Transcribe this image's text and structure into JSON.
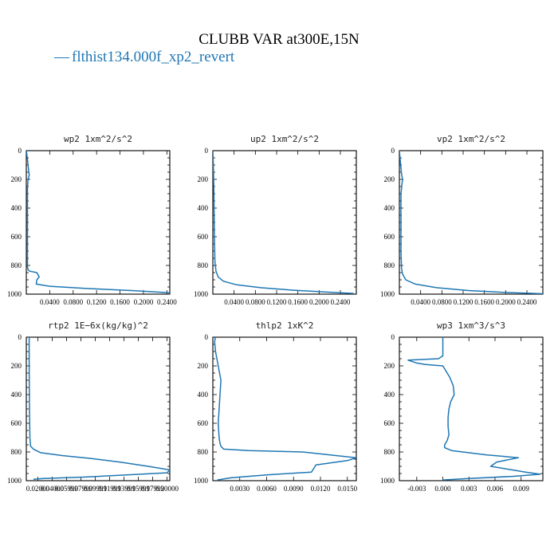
{
  "figure": {
    "title": "CLUBB VAR at300E,15N",
    "legend_label": "flthist134.000f_xp2_revert",
    "legend_marker": "—",
    "line_color": "#1f77b4"
  },
  "chart_data": [
    {
      "type": "line",
      "title": "wp2  1xm^2/s^2",
      "xlim": [
        0,
        0.245
      ],
      "ylim": [
        1000,
        0
      ],
      "xticks": [
        0.04,
        0.08,
        0.12,
        0.16,
        0.2,
        0.24
      ],
      "xticklabels": [
        "0.0400",
        "0.0800",
        "0.1200",
        "0.1600",
        "0.2000",
        "0.2400"
      ],
      "yticks": [
        0,
        200,
        400,
        600,
        800,
        1000
      ],
      "yticklabels": [
        "0",
        "200",
        "400",
        "600",
        "800",
        "1000"
      ],
      "series": [
        {
          "x": [
            0.0,
            0.002,
            0.004,
            0.005,
            0.003,
            0.002,
            0.002,
            0.002,
            0.002,
            0.002,
            0.003,
            0.006,
            0.018,
            0.022,
            0.018,
            0.017,
            0.04,
            0.1,
            0.18,
            0.245
          ],
          "y": [
            0,
            60,
            140,
            170,
            200,
            260,
            400,
            600,
            780,
            810,
            830,
            840,
            850,
            880,
            900,
            930,
            945,
            960,
            975,
            990
          ]
        }
      ]
    },
    {
      "type": "line",
      "title": "up2  1xm^2/s^2",
      "xlim": [
        0,
        0.27
      ],
      "ylim": [
        1000,
        0
      ],
      "xticks": [
        0.04,
        0.08,
        0.12,
        0.16,
        0.2,
        0.24
      ],
      "xticklabels": [
        "0.0400",
        "0.0800",
        "0.1200",
        "0.1600",
        "0.2000",
        "0.2400"
      ],
      "yticks": [
        0,
        200,
        400,
        600,
        800,
        1000
      ],
      "yticklabels": [
        "0",
        "200",
        "400",
        "600",
        "800",
        "1000"
      ],
      "series": [
        {
          "x": [
            0.0,
            0.001,
            0.002,
            0.003,
            0.004,
            0.006,
            0.01,
            0.02,
            0.045,
            0.09,
            0.15,
            0.21,
            0.265
          ],
          "y": [
            0,
            100,
            300,
            600,
            780,
            840,
            880,
            910,
            935,
            955,
            972,
            985,
            995
          ]
        }
      ]
    },
    {
      "type": "line",
      "title": "vp2  1xm^2/s^2",
      "xlim": [
        0,
        0.27
      ],
      "ylim": [
        1000,
        0
      ],
      "xticks": [
        0.04,
        0.08,
        0.12,
        0.16,
        0.2,
        0.24
      ],
      "xticklabels": [
        "0.0400",
        "0.0800",
        "0.1200",
        "0.1600",
        "0.2000",
        "0.2400"
      ],
      "yticks": [
        0,
        200,
        400,
        600,
        800,
        1000
      ],
      "yticklabels": [
        "0",
        "200",
        "400",
        "600",
        "800",
        "1000"
      ],
      "series": [
        {
          "x": [
            0.0,
            0.002,
            0.004,
            0.006,
            0.005,
            0.003,
            0.003,
            0.003,
            0.004,
            0.006,
            0.012,
            0.03,
            0.07,
            0.13,
            0.2,
            0.27
          ],
          "y": [
            0,
            80,
            160,
            200,
            230,
            300,
            500,
            700,
            820,
            860,
            900,
            930,
            955,
            975,
            988,
            997
          ]
        }
      ]
    },
    {
      "type": "line",
      "title": "rtp2  1E−6x(kg/kg)^2",
      "xlim": [
        0,
        1.0
      ],
      "ylim": [
        1000,
        0
      ],
      "xticks": [
        0.08,
        0.18,
        0.28,
        0.38,
        0.48,
        0.58,
        0.68,
        0.78,
        0.88,
        0.98
      ],
      "xticklabels": [
        "0.02000",
        "0.04000",
        "0.05999",
        "0.07999",
        "0.09999",
        "0.11999",
        "0.13999",
        "0.15999",
        "0.17999",
        "0.20000"
      ],
      "yticks": [
        0,
        200,
        400,
        600,
        800,
        1000
      ],
      "yticklabels": [
        "0",
        "200",
        "400",
        "600",
        "800",
        "1000"
      ],
      "series": [
        {
          "x": [
            0.02,
            0.02,
            0.022,
            0.025,
            0.03,
            0.05,
            0.1,
            0.25,
            0.45,
            0.65,
            0.85,
            1.0,
            0.98,
            0.7,
            0.4,
            0.12,
            0.05
          ],
          "y": [
            0,
            200,
            500,
            700,
            760,
            780,
            805,
            825,
            845,
            870,
            900,
            925,
            945,
            960,
            975,
            985,
            990
          ]
        }
      ]
    },
    {
      "type": "line",
      "title": "thlp2  1xK^2",
      "xlim": [
        0,
        0.016
      ],
      "ylim": [
        1000,
        0
      ],
      "xticks": [
        0.003,
        0.006,
        0.009,
        0.012,
        0.015
      ],
      "xticklabels": [
        "0.0030",
        "0.0060",
        "0.0090",
        "0.0120",
        "0.0150"
      ],
      "yticks": [
        0,
        200,
        400,
        600,
        800,
        1000
      ],
      "yticklabels": [
        "0",
        "200",
        "400",
        "600",
        "800",
        "1000"
      ],
      "series": [
        {
          "x": [
            0.0003,
            0.0002,
            0.0003,
            0.0006,
            0.0009,
            0.0008,
            0.0007,
            0.0006,
            0.0007,
            0.0008,
            0.0009,
            0.0012,
            0.004,
            0.01,
            0.016,
            0.015,
            0.0115,
            0.0112,
            0.011,
            0.006,
            0.002,
            0.0005
          ],
          "y": [
            0,
            30,
            100,
            200,
            300,
            400,
            500,
            600,
            700,
            740,
            760,
            780,
            790,
            800,
            840,
            860,
            890,
            920,
            940,
            960,
            980,
            995
          ]
        }
      ]
    },
    {
      "type": "line",
      "title": "wp3  1xm^3/s^3",
      "xlim": [
        -0.005,
        0.0115
      ],
      "ylim": [
        1000,
        0
      ],
      "xticks": [
        -0.003,
        0.0,
        0.003,
        0.006,
        0.009
      ],
      "xticklabels": [
        "-0.003",
        "0.000",
        "0.003",
        "0.006",
        "0.009"
      ],
      "yticks": [
        0,
        200,
        400,
        600,
        800,
        1000
      ],
      "yticklabels": [
        "0",
        "200",
        "400",
        "600",
        "800",
        "1000"
      ],
      "series": [
        {
          "x": [
            0.0,
            0.0,
            -0.0005,
            -0.004,
            -0.003,
            -0.002,
            0.0,
            0.0008,
            0.0012,
            0.0013,
            0.0009,
            0.0007,
            0.0006,
            0.0006,
            0.0007,
            0.0005,
            0.0002,
            0.0002,
            0.001,
            0.005,
            0.0087,
            0.0062,
            0.0055,
            0.0075,
            0.0095,
            0.0112,
            0.008,
            0.003,
            0.0
          ],
          "y": [
            0,
            130,
            150,
            160,
            180,
            190,
            200,
            280,
            340,
            400,
            450,
            500,
            560,
            620,
            680,
            720,
            750,
            770,
            790,
            820,
            840,
            870,
            900,
            920,
            940,
            955,
            970,
            985,
            995
          ]
        }
      ]
    }
  ]
}
